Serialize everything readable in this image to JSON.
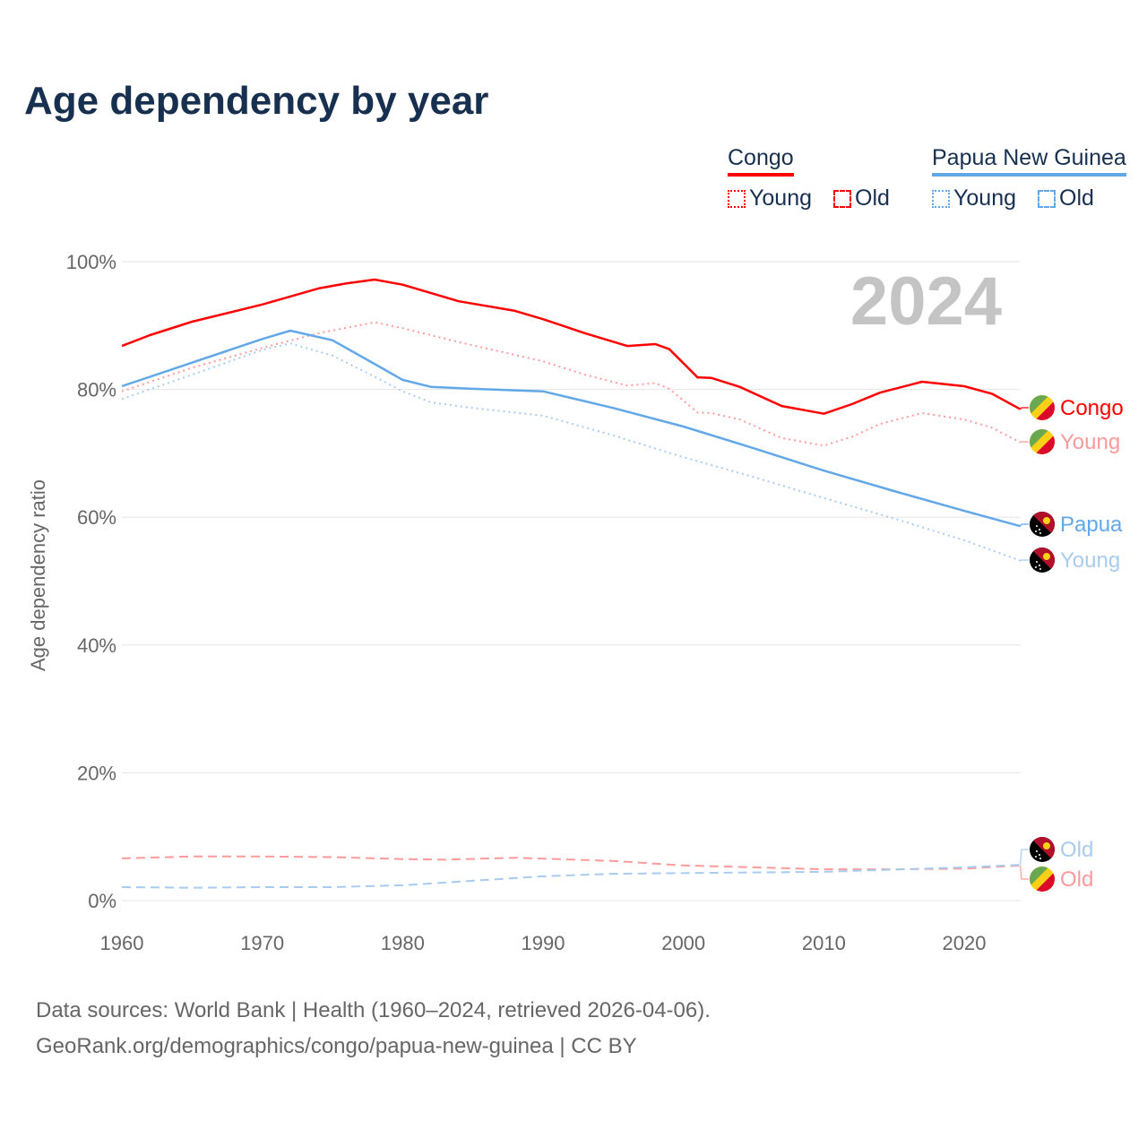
{
  "title": "Age dependency by year",
  "legend": {
    "groups": [
      {
        "name": "Congo",
        "color": "#ff0000",
        "items": [
          "Young",
          "Old"
        ]
      },
      {
        "name": "Papua New Guinea",
        "color": "#62a8e8",
        "items": [
          "Young",
          "Old"
        ]
      }
    ]
  },
  "footer": {
    "line1": "Data sources: World Bank | Health (1960–2024, retrieved 2026-04-06).",
    "line2": "GeoRank.org/demographics/congo/papua-new-guinea | CC BY"
  },
  "chart_data": {
    "type": "line",
    "title": "Age dependency by year",
    "year_watermark": "2024",
    "xlabel": "",
    "ylabel": "Age dependency ratio",
    "xlim": [
      1960,
      2024
    ],
    "ylim": [
      0,
      100
    ],
    "x_ticks": [
      "1960",
      "1970",
      "1980",
      "1990",
      "2000",
      "2010",
      "2020"
    ],
    "y_ticks": [
      "0%",
      "20%",
      "40%",
      "60%",
      "80%",
      "100%"
    ],
    "grid": true,
    "series": [
      {
        "name": "Congo",
        "end_label": "Congo",
        "country": "congo",
        "color": "#ff0000",
        "dash": "solid",
        "x": [
          1960,
          1962,
          1965,
          1970,
          1974,
          1976,
          1978,
          1980,
          1984,
          1988,
          1990,
          1993,
          1996,
          1998,
          1999,
          2001,
          2002,
          2004,
          2007,
          2010,
          2012,
          2014,
          2017,
          2020,
          2022,
          2024
        ],
        "y": [
          86.8,
          88.5,
          90.6,
          93.3,
          95.8,
          96.6,
          97.2,
          96.4,
          93.8,
          92.3,
          91,
          88.8,
          86.8,
          87.1,
          86.3,
          81.9,
          81.8,
          80.4,
          77.4,
          76.2,
          77.7,
          79.5,
          81.2,
          80.5,
          79.3,
          76.9
        ]
      },
      {
        "name": "Congo Young",
        "end_label": "Young",
        "country": "congo",
        "color": "#ff9a9a",
        "dash": "dotted",
        "x": [
          1960,
          1965,
          1970,
          1974,
          1978,
          1980,
          1984,
          1990,
          1993,
          1996,
          1998,
          1999,
          2001,
          2002,
          2004,
          2007,
          2010,
          2012,
          2014,
          2017,
          2020,
          2022,
          2024
        ],
        "y": [
          79.7,
          83.4,
          86.5,
          88.8,
          90.5,
          89.6,
          87.4,
          84.4,
          82.3,
          80.6,
          81,
          80.1,
          76.4,
          76.3,
          75.3,
          72.4,
          71.2,
          72.6,
          74.6,
          76.3,
          75.3,
          74,
          71.7
        ]
      },
      {
        "name": "Congo Old",
        "end_label": "Old",
        "country": "congo",
        "color": "#ff9a9a",
        "dash": "dashed",
        "x": [
          1960,
          1965,
          1970,
          1975,
          1980,
          1983,
          1988,
          1995,
          2000,
          2005,
          2010,
          2015,
          2020,
          2024
        ],
        "y": [
          6.6,
          6.9,
          6.9,
          6.8,
          6.5,
          6.4,
          6.7,
          6.2,
          5.5,
          5.2,
          4.9,
          4.9,
          5.0,
          5.5
        ]
      },
      {
        "name": "Papua New Guinea",
        "end_label": "Papua",
        "country": "png",
        "color": "#62a8e8",
        "dash": "solid",
        "x": [
          1960,
          1965,
          1970,
          1972,
          1975,
          1978,
          1980,
          1982,
          1985,
          1990,
          1995,
          2000,
          2005,
          2010,
          2015,
          2020,
          2024
        ],
        "y": [
          80.5,
          84.2,
          87.9,
          89.2,
          87.7,
          84,
          81.5,
          80.4,
          80.1,
          79.7,
          77.1,
          74.2,
          70.8,
          67.3,
          64.1,
          61,
          58.6
        ]
      },
      {
        "name": "Papua New Guinea Young",
        "end_label": "Young",
        "country": "png",
        "color": "#a8ccf0",
        "dash": "dotted",
        "x": [
          1960,
          1965,
          1970,
          1972,
          1975,
          1978,
          1980,
          1982,
          1985,
          1990,
          1995,
          2000,
          2005,
          2010,
          2015,
          2020,
          2024
        ],
        "y": [
          78.5,
          82.3,
          86.2,
          87.2,
          85.3,
          82,
          79.7,
          78,
          77.1,
          75.9,
          72.8,
          69.4,
          66.3,
          63,
          59.8,
          56.4,
          53.2
        ]
      },
      {
        "name": "Papua New Guinea Old",
        "end_label": "Old",
        "country": "png",
        "color": "#a8ccf0",
        "dash": "dashed",
        "x": [
          1960,
          1965,
          1970,
          1975,
          1980,
          1985,
          1990,
          1995,
          2000,
          2010,
          2020,
          2024
        ],
        "y": [
          2.1,
          2.0,
          2.1,
          2.1,
          2.4,
          3.1,
          3.8,
          4.2,
          4.3,
          4.5,
          5.2,
          5.6
        ]
      }
    ]
  }
}
